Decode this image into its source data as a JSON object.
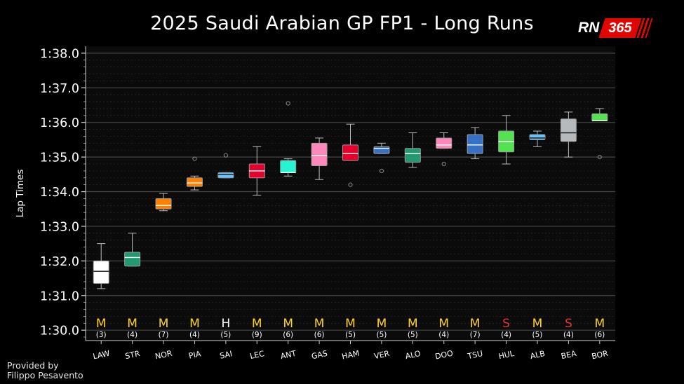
{
  "header": {
    "title": "2025 Saudi Arabian GP FP1 - Long Runs",
    "logo_rn": "RN",
    "logo_num": "365"
  },
  "footer": {
    "credit_line1": "Provided by",
    "credit_line2": "Filippo Pesavento"
  },
  "colors": {
    "background": "#000000",
    "grid": "#3a3a3a",
    "whisker": "#bdbdbd"
  },
  "chart_data": {
    "type": "box",
    "title": "2025 Saudi Arabian GP FP1 - Long Runs",
    "xlabel": "",
    "ylabel": "Lap Times",
    "ylim": [
      89.7,
      98.2
    ],
    "yticks": [
      90,
      91,
      92,
      93,
      94,
      95,
      96,
      97,
      98
    ],
    "yticklabels": [
      "1:30.0",
      "1:31.0",
      "1:32.0",
      "1:33.0",
      "1:34.0",
      "1:35.0",
      "1:36.0",
      "1:37.0",
      "1:38.0"
    ],
    "grid": true,
    "drivers": [
      {
        "name": "LAW",
        "color": "#ffffff",
        "compound": "M",
        "compound_color": "#ffd12e",
        "laps": "(3)",
        "min": 91.2,
        "q1": 91.35,
        "median": 91.7,
        "q3": 92.0,
        "max": 92.5,
        "outliers": []
      },
      {
        "name": "STR",
        "color": "#229971",
        "compound": "M",
        "compound_color": "#ffd12e",
        "laps": "(4)",
        "min": 91.85,
        "q1": 91.85,
        "median": 92.1,
        "q3": 92.25,
        "max": 92.8,
        "outliers": []
      },
      {
        "name": "NOR",
        "color": "#ff8000",
        "compound": "M",
        "compound_color": "#ffd12e",
        "laps": "(7)",
        "min": 93.45,
        "q1": 93.5,
        "median": 93.6,
        "q3": 93.8,
        "max": 93.95,
        "outliers": []
      },
      {
        "name": "PIA",
        "color": "#ff8000",
        "compound": "M",
        "compound_color": "#ffd12e",
        "laps": "(4)",
        "min": 94.05,
        "q1": 94.15,
        "median": 94.25,
        "q3": 94.4,
        "max": 94.45,
        "outliers": [
          94.95
        ]
      },
      {
        "name": "SAI",
        "color": "#64c4ff",
        "compound": "H",
        "compound_color": "#ffffff",
        "laps": "(5)",
        "min": 94.4,
        "q1": 94.4,
        "median": 94.5,
        "q3": 94.55,
        "max": 94.55,
        "outliers": [
          95.05
        ]
      },
      {
        "name": "LEC",
        "color": "#e8002d",
        "compound": "M",
        "compound_color": "#ffd12e",
        "laps": "(9)",
        "min": 93.9,
        "q1": 94.4,
        "median": 94.6,
        "q3": 94.8,
        "max": 95.3,
        "outliers": []
      },
      {
        "name": "ANT",
        "color": "#27f4d2",
        "compound": "M",
        "compound_color": "#ffd12e",
        "laps": "(6)",
        "min": 94.45,
        "q1": 94.55,
        "median": 94.55,
        "q3": 94.9,
        "max": 94.95,
        "outliers": [
          96.55
        ]
      },
      {
        "name": "GAS",
        "color": "#ff87bc",
        "compound": "M",
        "compound_color": "#ffd12e",
        "laps": "(6)",
        "min": 94.35,
        "q1": 94.75,
        "median": 95.05,
        "q3": 95.4,
        "max": 95.55,
        "outliers": []
      },
      {
        "name": "HAM",
        "color": "#e8002d",
        "compound": "M",
        "compound_color": "#ffd12e",
        "laps": "(5)",
        "min": 94.9,
        "q1": 94.9,
        "median": 95.1,
        "q3": 95.35,
        "max": 95.95,
        "outliers": [
          94.2
        ]
      },
      {
        "name": "VER",
        "color": "#3671c6",
        "compound": "M",
        "compound_color": "#ffd12e",
        "laps": "(5)",
        "min": 95.1,
        "q1": 95.1,
        "median": 95.25,
        "q3": 95.3,
        "max": 95.4,
        "outliers": [
          94.6
        ]
      },
      {
        "name": "ALO",
        "color": "#229971",
        "compound": "M",
        "compound_color": "#ffd12e",
        "laps": "(5)",
        "min": 94.7,
        "q1": 94.85,
        "median": 95.1,
        "q3": 95.25,
        "max": 95.7,
        "outliers": []
      },
      {
        "name": "DOO",
        "color": "#ff87bc",
        "compound": "M",
        "compound_color": "#ffd12e",
        "laps": "(4)",
        "min": 95.25,
        "q1": 95.25,
        "median": 95.35,
        "q3": 95.55,
        "max": 95.7,
        "outliers": [
          94.8
        ]
      },
      {
        "name": "TSU",
        "color": "#3671c6",
        "compound": "M",
        "compound_color": "#ffd12e",
        "laps": "(7)",
        "min": 94.95,
        "q1": 95.1,
        "median": 95.35,
        "q3": 95.65,
        "max": 95.85,
        "outliers": []
      },
      {
        "name": "HUL",
        "color": "#52e252",
        "compound": "S",
        "compound_color": "#e03a3a",
        "laps": "(4)",
        "min": 94.8,
        "q1": 95.15,
        "median": 95.45,
        "q3": 95.75,
        "max": 96.2,
        "outliers": []
      },
      {
        "name": "ALB",
        "color": "#64c4ff",
        "compound": "M",
        "compound_color": "#ffd12e",
        "laps": "(5)",
        "min": 95.3,
        "q1": 95.5,
        "median": 95.55,
        "q3": 95.65,
        "max": 95.75,
        "outliers": []
      },
      {
        "name": "BEA",
        "color": "#b6babd",
        "compound": "S",
        "compound_color": "#e03a3a",
        "laps": "(4)",
        "min": 95.0,
        "q1": 95.45,
        "median": 95.7,
        "q3": 96.1,
        "max": 96.3,
        "outliers": []
      },
      {
        "name": "BOR",
        "color": "#52e252",
        "compound": "M",
        "compound_color": "#ffd12e",
        "laps": "(6)",
        "min": 96.05,
        "q1": 96.05,
        "median": 96.05,
        "q3": 96.25,
        "max": 96.4,
        "outliers": [
          95.0
        ]
      }
    ]
  }
}
